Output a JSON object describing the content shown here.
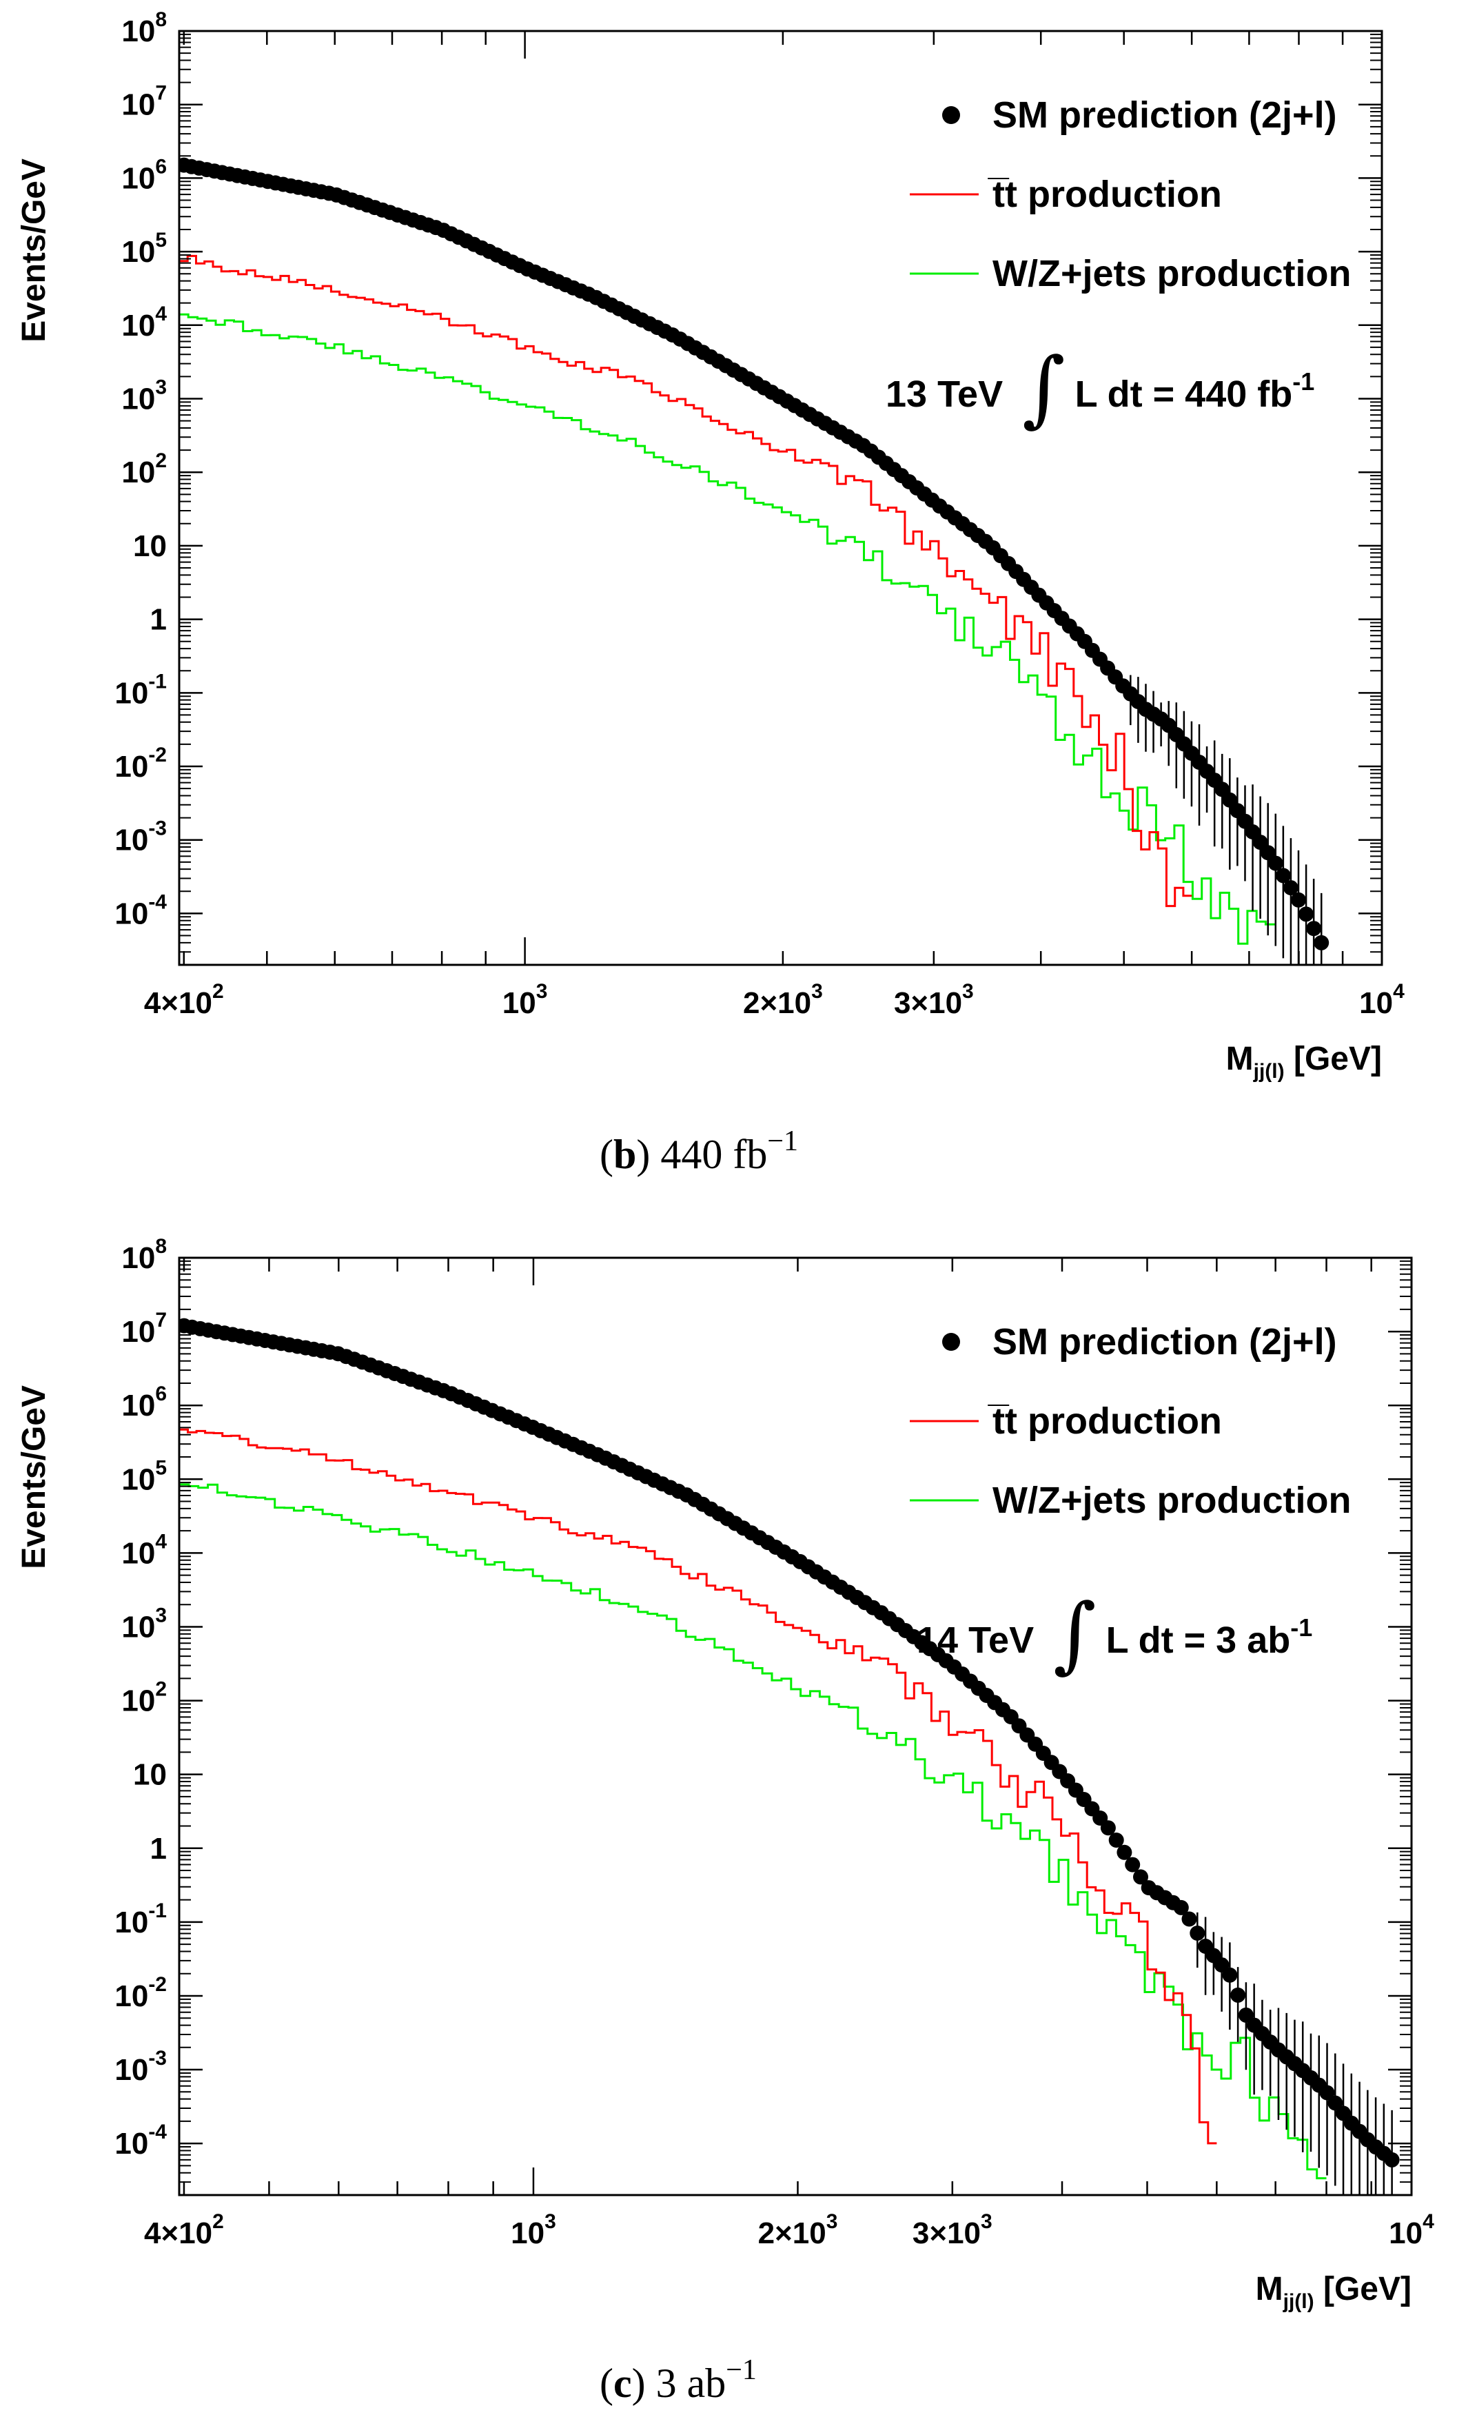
{
  "chart_data": [
    {
      "type": "line",
      "panel": "b",
      "caption_letter": "b",
      "caption_text": "440 fb",
      "caption_sup": "−1",
      "ylabel": "Events/GeV",
      "xlabel": "M",
      "xlabel_sub": "jj(l)",
      "xlabel_unit": "[GeV]",
      "xscale": "log",
      "xlim": [
        395,
        10000
      ],
      "yscale": "log",
      "ylim": [
        2e-05,
        100000000
      ],
      "x_ticks": [
        {
          "value": 400,
          "base": "4×10",
          "exp": "2"
        },
        {
          "value": 1000,
          "base": "10",
          "exp": "3"
        },
        {
          "value": 2000,
          "base": "2×10",
          "exp": "3"
        },
        {
          "value": 3000,
          "base": "3×10",
          "exp": "3"
        },
        {
          "value": 10000,
          "base": "10",
          "exp": "4"
        }
      ],
      "y_ticks": [
        {
          "value": 0.0001,
          "base": "10",
          "exp": "-4"
        },
        {
          "value": 0.001,
          "base": "10",
          "exp": "-3"
        },
        {
          "value": 0.01,
          "base": "10",
          "exp": "-2"
        },
        {
          "value": 0.1,
          "base": "10",
          "exp": "-1"
        },
        {
          "value": 1,
          "base": "1",
          "exp": ""
        },
        {
          "value": 10,
          "base": "10",
          "exp": ""
        },
        {
          "value": 100,
          "base": "10",
          "exp": "2"
        },
        {
          "value": 1000,
          "base": "10",
          "exp": "3"
        },
        {
          "value": 10000,
          "base": "10",
          "exp": "4"
        },
        {
          "value": 100000,
          "base": "10",
          "exp": "5"
        },
        {
          "value": 1000000,
          "base": "10",
          "exp": "6"
        },
        {
          "value": 10000000,
          "base": "10",
          "exp": "7"
        },
        {
          "value": 100000000,
          "base": "10",
          "exp": "8"
        }
      ],
      "legend": {
        "position": "top-right",
        "entries": [
          {
            "label": "SM prediction (2j+l)",
            "style": "marker",
            "color": "#000000"
          },
          {
            "label": "t̅t production",
            "style": "line",
            "color": "#ff0000"
          },
          {
            "label": "W/Z+jets production",
            "style": "line",
            "color": "#00ee00"
          }
        ]
      },
      "lumi": {
        "energy": "13 TeV",
        "integral": "∫",
        "text": "L dt =  440 fb",
        "sup": "-1"
      },
      "series": [
        {
          "name": "SM prediction (2j+l)",
          "color": "#000000",
          "x": [
            400,
            600,
            800,
            1000,
            1200,
            1500,
            2000,
            2500,
            3000,
            3500,
            4000,
            4500,
            5000,
            5300,
            5600,
            6000,
            6500,
            7000,
            7500,
            8000,
            8500
          ],
          "y": [
            1500000,
            600000,
            200000,
            60000,
            25000,
            7000,
            1000,
            220,
            40,
            10,
            2,
            0.5,
            0.12,
            0.06,
            0.04,
            0.015,
            0.005,
            0.0015,
            0.0005,
            0.00015,
            4e-05
          ]
        },
        {
          "name": "t̅t production",
          "color": "#ff0000",
          "x": [
            400,
            600,
            800,
            1000,
            1300,
            1600,
            2000,
            2500,
            3000,
            3500,
            4000,
            4500,
            5000,
            5200,
            5600,
            6000
          ],
          "y": [
            80000,
            30000,
            12000,
            5000,
            2000,
            700,
            200,
            60,
            8,
            2,
            0.4,
            0.05,
            0.01,
            0.001,
            0.0005,
            5e-05
          ]
        },
        {
          "name": "W/Z+jets production",
          "color": "#00ee00",
          "x": [
            400,
            600,
            800,
            1000,
            1300,
            1600,
            2000,
            2500,
            3000,
            3500,
            4000,
            4500,
            5000,
            5500,
            6000,
            6500,
            7000,
            7500
          ],
          "y": [
            15000,
            5000,
            2000,
            800,
            300,
            100,
            30,
            8,
            1.5,
            0.4,
            0.08,
            0.02,
            0.005,
            0.001,
            0.0005,
            0.0002,
            8e-05,
            4e-05
          ]
        }
      ]
    },
    {
      "type": "line",
      "panel": "c",
      "caption_letter": "c",
      "caption_text": "3 ab",
      "caption_sup": "−1",
      "ylabel": "Events/GeV",
      "xlabel": "M",
      "xlabel_sub": "jj(l)",
      "xlabel_unit": "[GeV]",
      "xscale": "log",
      "xlim": [
        395,
        10000
      ],
      "yscale": "log",
      "ylim": [
        2e-05,
        100000000
      ],
      "x_ticks": [
        {
          "value": 400,
          "base": "4×10",
          "exp": "2"
        },
        {
          "value": 1000,
          "base": "10",
          "exp": "3"
        },
        {
          "value": 2000,
          "base": "2×10",
          "exp": "3"
        },
        {
          "value": 3000,
          "base": "3×10",
          "exp": "3"
        },
        {
          "value": 10000,
          "base": "10",
          "exp": "4"
        }
      ],
      "y_ticks": [
        {
          "value": 0.0001,
          "base": "10",
          "exp": "-4"
        },
        {
          "value": 0.001,
          "base": "10",
          "exp": "-3"
        },
        {
          "value": 0.01,
          "base": "10",
          "exp": "-2"
        },
        {
          "value": 0.1,
          "base": "10",
          "exp": "-1"
        },
        {
          "value": 1,
          "base": "1",
          "exp": ""
        },
        {
          "value": 10,
          "base": "10",
          "exp": ""
        },
        {
          "value": 100,
          "base": "10",
          "exp": "2"
        },
        {
          "value": 1000,
          "base": "10",
          "exp": "3"
        },
        {
          "value": 10000,
          "base": "10",
          "exp": "4"
        },
        {
          "value": 100000,
          "base": "10",
          "exp": "5"
        },
        {
          "value": 1000000,
          "base": "10",
          "exp": "6"
        },
        {
          "value": 10000000,
          "base": "10",
          "exp": "7"
        },
        {
          "value": 100000000,
          "base": "10",
          "exp": "8"
        }
      ],
      "legend": {
        "position": "top-right",
        "entries": [
          {
            "label": "SM prediction (2j+l)",
            "style": "marker",
            "color": "#000000"
          },
          {
            "label": "t̅t production",
            "style": "line",
            "color": "#ff0000"
          },
          {
            "label": "W/Z+jets production",
            "style": "line",
            "color": "#00ee00"
          }
        ]
      },
      "lumi": {
        "energy": "14 TeV",
        "integral": "∫",
        "text": "L dt =  3 ab",
        "sup": "-1"
      },
      "series": [
        {
          "name": "SM prediction (2j+l)",
          "color": "#000000",
          "x": [
            400,
            600,
            800,
            1000,
            1200,
            1500,
            2000,
            2500,
            3000,
            3500,
            4000,
            4500,
            5000,
            5500,
            5800,
            6200,
            6500,
            7000,
            7500,
            8000,
            8500,
            9000,
            9500
          ],
          "y": [
            12000000,
            5000000,
            1500000,
            500000,
            200000,
            60000,
            8000,
            1500,
            300,
            60,
            10,
            2,
            0.3,
            0.15,
            0.05,
            0.02,
            0.005,
            0.002,
            0.001,
            0.0005,
            0.0002,
            0.0001,
            6e-05
          ]
        },
        {
          "name": "t̅t production",
          "color": "#ff0000",
          "x": [
            400,
            600,
            800,
            1000,
            1300,
            1600,
            2000,
            2500,
            3000,
            3500,
            4000,
            4500,
            5000,
            5500,
            6000
          ],
          "y": [
            500000,
            180000,
            70000,
            30000,
            12000,
            4000,
            1000,
            300,
            50,
            10,
            2,
            0.3,
            0.05,
            0.005,
            0.0001
          ]
        },
        {
          "name": "W/Z+jets production",
          "color": "#00ee00",
          "x": [
            400,
            600,
            800,
            1000,
            1300,
            1600,
            2000,
            2500,
            3000,
            3500,
            4000,
            4500,
            5000,
            5500,
            6000,
            6500,
            7000,
            7500,
            8000
          ],
          "y": [
            90000,
            30000,
            12000,
            5000,
            2000,
            600,
            150,
            40,
            8,
            2,
            0.4,
            0.1,
            0.02,
            0.005,
            0.002,
            0.001,
            0.0005,
            0.0002,
            0.0001
          ]
        }
      ]
    }
  ]
}
